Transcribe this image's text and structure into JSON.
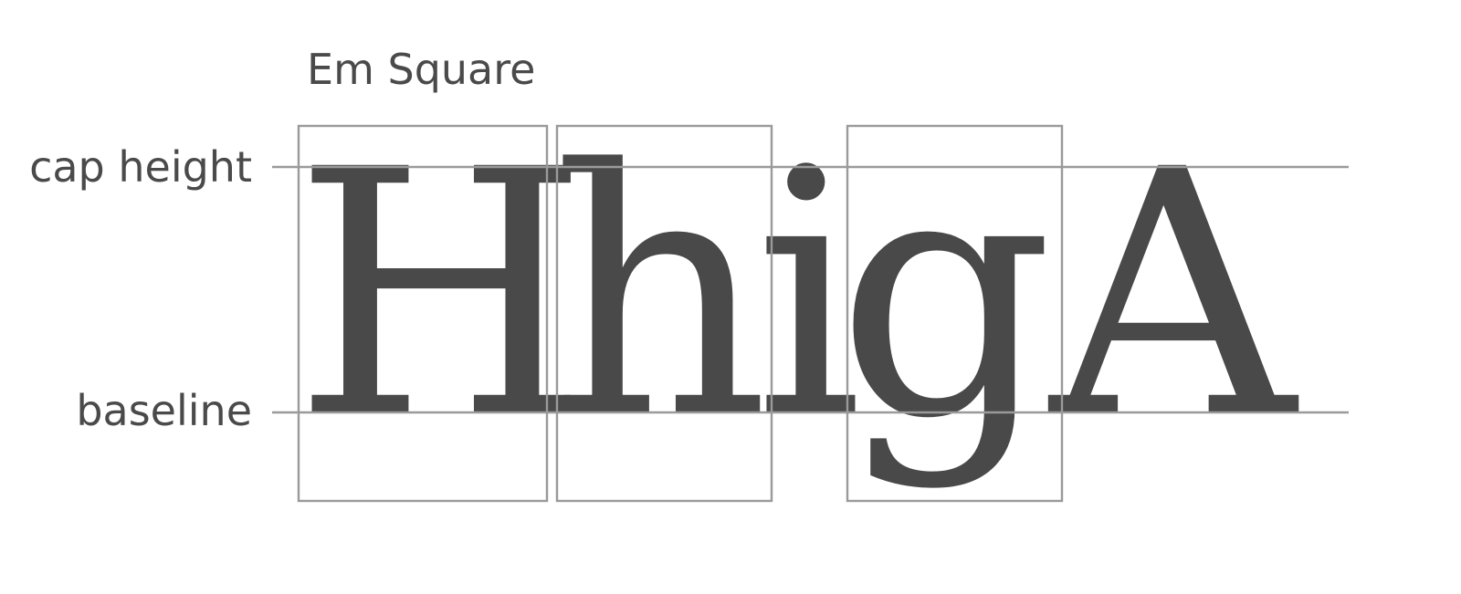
{
  "labels": {
    "em_square": "Em Square",
    "cap_height": "cap height",
    "baseline": "baseline"
  },
  "glyphs": [
    "H",
    "h",
    "i",
    "g",
    "A"
  ],
  "colors": {
    "text": "#4a4a4a",
    "glyph": "#494949",
    "guide_lines": "#9a9a9a",
    "background": "#ffffff"
  }
}
